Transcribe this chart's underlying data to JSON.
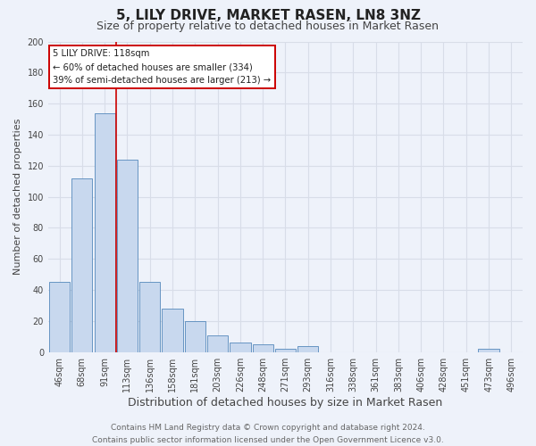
{
  "title": "5, LILY DRIVE, MARKET RASEN, LN8 3NZ",
  "subtitle": "Size of property relative to detached houses in Market Rasen",
  "xlabel": "Distribution of detached houses by size in Market Rasen",
  "ylabel": "Number of detached properties",
  "bin_labels": [
    "46sqm",
    "68sqm",
    "91sqm",
    "113sqm",
    "136sqm",
    "158sqm",
    "181sqm",
    "203sqm",
    "226sqm",
    "248sqm",
    "271sqm",
    "293sqm",
    "316sqm",
    "338sqm",
    "361sqm",
    "383sqm",
    "406sqm",
    "428sqm",
    "451sqm",
    "473sqm",
    "496sqm"
  ],
  "bar_heights": [
    45,
    112,
    154,
    124,
    45,
    28,
    20,
    11,
    6,
    5,
    2,
    4,
    0,
    0,
    0,
    0,
    0,
    0,
    0,
    2,
    0
  ],
  "bar_color": "#c8d8ee",
  "bar_edgecolor": "#5588bb",
  "vline_x_index": 2.5,
  "vline_color": "#cc0000",
  "annotation_line1": "5 LILY DRIVE: 118sqm",
  "annotation_line2": "← 60% of detached houses are smaller (334)",
  "annotation_line3": "39% of semi-detached houses are larger (213) →",
  "ylim": [
    0,
    200
  ],
  "yticks": [
    0,
    20,
    40,
    60,
    80,
    100,
    120,
    140,
    160,
    180,
    200
  ],
  "footer_line1": "Contains HM Land Registry data © Crown copyright and database right 2024.",
  "footer_line2": "Contains public sector information licensed under the Open Government Licence v3.0.",
  "background_color": "#eef2fa",
  "grid_color": "#d8dde8",
  "title_fontsize": 11,
  "subtitle_fontsize": 9,
  "xlabel_fontsize": 9,
  "ylabel_fontsize": 8,
  "tick_fontsize": 7,
  "footer_fontsize": 6.5
}
